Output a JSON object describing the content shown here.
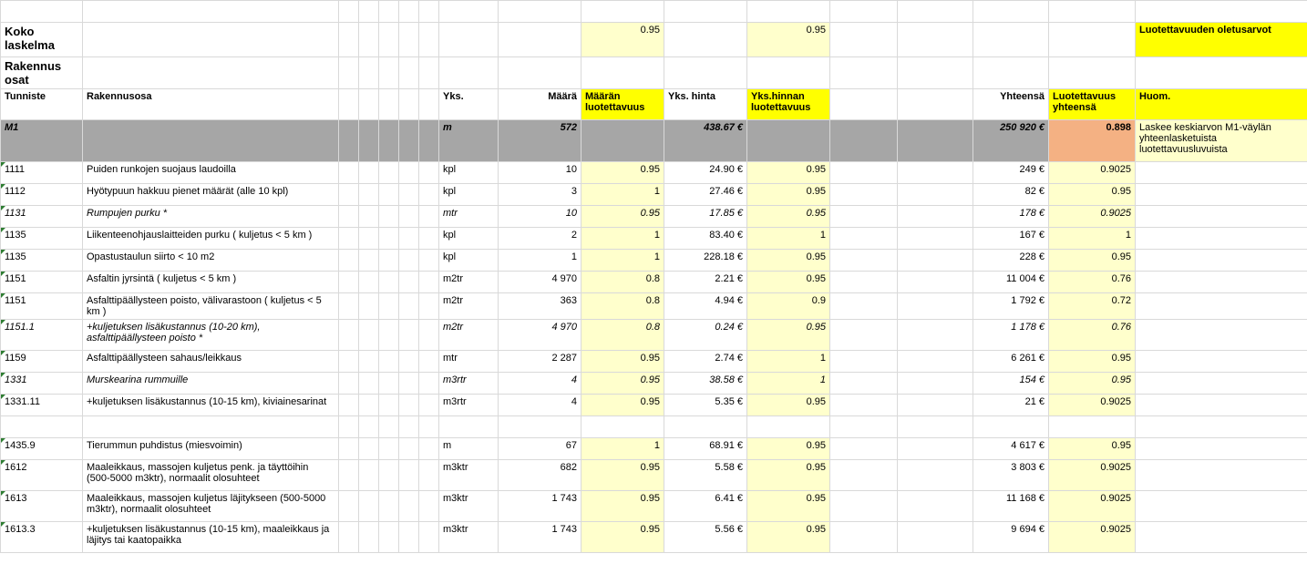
{
  "top": {
    "title": "Koko laskelma",
    "def1": "0.95",
    "def2": "0.95",
    "defaults_label": "Luotettavuuden oletusarvot"
  },
  "section": "Rakennus osat",
  "cols": {
    "c1": "Tunniste",
    "c2": "Rakennusosa",
    "c8": "Yks.",
    "c9": "Määrä",
    "c10": "Määrän luotettavuus",
    "c11": "Yks. hinta",
    "c12": "Yks.hinnan luotettavuus",
    "c15": "Yhteensä",
    "c16": "Luotettavuus yhteensä",
    "c17": "Huom."
  },
  "m1": {
    "id": "M1",
    "unit": "m",
    "qty": "572",
    "price": "438.67 €",
    "total": "250 920 €",
    "rel": "0.898",
    "note": "Laskee keskiarvon M1-väylän yhteenlasketuista luotettavuusluvuista"
  },
  "rows": [
    {
      "id": "1111",
      "name": "Puiden runkojen suojaus laudoilla",
      "unit": "kpl",
      "qty": "10",
      "qrel": "0.95",
      "price": "24.90 €",
      "prel": "0.95",
      "total": "249 €",
      "rel": "0.9025"
    },
    {
      "id": "1112",
      "name": "Hyötypuun hakkuu pienet määrät (alle 10 kpl)",
      "unit": "kpl",
      "qty": "3",
      "qrel": "1",
      "price": "27.46 €",
      "prel": "0.95",
      "total": "82 €",
      "rel": "0.95"
    },
    {
      "id": "1131",
      "name": "Rumpujen purku *",
      "unit": "mtr",
      "qty": "10",
      "qrel": "0.95",
      "price": "17.85 €",
      "prel": "0.95",
      "total": "178 €",
      "rel": "0.9025",
      "italic": true
    },
    {
      "id": "1135",
      "name": "Liikenteenohjauslaitteiden purku ( kuljetus < 5 km )",
      "unit": "kpl",
      "qty": "2",
      "qrel": "1",
      "price": "83.40 €",
      "prel": "1",
      "total": "167 €",
      "rel": "1"
    },
    {
      "id": "1135",
      "name": "Opastustaulun siirto < 10 m2",
      "unit": "kpl",
      "qty": "1",
      "qrel": "1",
      "price": "228.18 €",
      "prel": "0.95",
      "total": "228 €",
      "rel": "0.95"
    },
    {
      "id": "1151",
      "name": "Asfaltin jyrsintä ( kuljetus < 5 km )",
      "unit": "m2tr",
      "qty": "4 970",
      "qrel": "0.8",
      "price": "2.21 €",
      "prel": "0.95",
      "total": "11 004 €",
      "rel": "0.76"
    },
    {
      "id": "1151",
      "name": "Asfalttipäällysteen poisto, välivarastoon ( kuljetus < 5 km )",
      "unit": "m2tr",
      "qty": "363",
      "qrel": "0.8",
      "price": "4.94 €",
      "prel": "0.9",
      "total": "1 792 €",
      "rel": "0.72"
    },
    {
      "id": "1151.1",
      "name": "+kuljetuksen lisäkustannus (10-20 km), asfalttipäällysteen poisto *",
      "unit": "m2tr",
      "qty": "4 970",
      "qrel": "0.8",
      "price": "0.24 €",
      "prel": "0.95",
      "total": "1 178 €",
      "rel": "0.76",
      "italic": true,
      "tall": true
    },
    {
      "id": "1159",
      "name": "Asfalttipäällysteen sahaus/leikkaus",
      "unit": "mtr",
      "qty": "2 287",
      "qrel": "0.95",
      "price": "2.74 €",
      "prel": "1",
      "total": "6 261 €",
      "rel": "0.95"
    },
    {
      "id": "1331",
      "name": "Murskearina rummuille",
      "unit": "m3rtr",
      "qty": "4",
      "qrel": "0.95",
      "price": "38.58 €",
      "prel": "1",
      "total": "154 €",
      "rel": "0.95",
      "italic": true
    },
    {
      "id": "1331.11",
      "name": "+kuljetuksen lisäkustannus (10-15 km), kiviainesarinat",
      "unit": "m3rtr",
      "qty": "4",
      "qrel": "0.95",
      "price": "5.35 €",
      "prel": "0.95",
      "total": "21 €",
      "rel": "0.9025"
    },
    {
      "id": "1435.9",
      "name": "Tierummun puhdistus (miesvoimin)",
      "unit": "m",
      "qty": "67",
      "qrel": "1",
      "price": "68.91 €",
      "prel": "0.95",
      "total": "4 617 €",
      "rel": "0.95",
      "gap": true
    },
    {
      "id": "1612",
      "name": "Maaleikkaus, massojen kuljetus penk. ja täyttöihin (500-5000 m3ktr), normaalit olosuhteet",
      "unit": "m3ktr",
      "qty": "682",
      "qrel": "0.95",
      "price": "5.58 €",
      "prel": "0.95",
      "total": "3 803 €",
      "rel": "0.9025",
      "tall": true
    },
    {
      "id": "1613",
      "name": "Maaleikkaus, massojen kuljetus läjitykseen (500-5000 m3ktr), normaalit olosuhteet",
      "unit": "m3ktr",
      "qty": "1 743",
      "qrel": "0.95",
      "price": "6.41 €",
      "prel": "0.95",
      "total": "11 168 €",
      "rel": "0.9025",
      "tall": true
    },
    {
      "id": "1613.3",
      "name": "+kuljetuksen lisäkustannus (10-15 km), maaleikkaus ja läjitys tai kaatopaikka",
      "unit": "m3ktr",
      "qty": "1 743",
      "qrel": "0.95",
      "price": "5.56 €",
      "prel": "0.95",
      "total": "9 694 €",
      "rel": "0.9025",
      "tall": true
    }
  ]
}
